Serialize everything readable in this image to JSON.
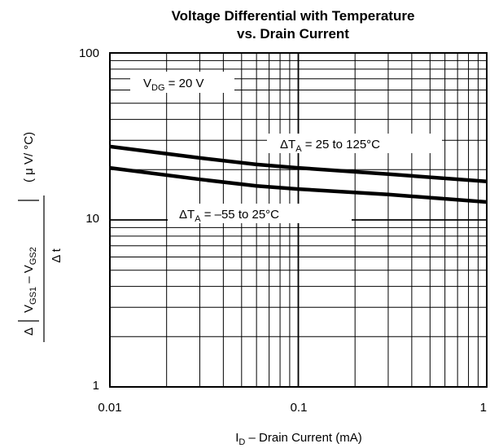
{
  "chart_data": {
    "type": "line",
    "title_line1": "Voltage Differential with Temperature",
    "title_line2": "vs. Drain Current",
    "x_scale": "log",
    "y_scale": "log",
    "xlim": [
      0.01,
      1
    ],
    "ylim": [
      1,
      100
    ],
    "grid": true,
    "x_ticks": [
      "0.01",
      "0.1",
      "1"
    ],
    "y_ticks": [
      "1",
      "10",
      "100"
    ],
    "xlabel": {
      "pre": "I",
      "sub": "D",
      "post": " – Drain Current (mA)"
    },
    "ylabel": {
      "delta": "Δ",
      "num_a": "V",
      "num_a_sub": "GS1",
      "minus": " – ",
      "num_b": "V",
      "num_b_sub": "GS2",
      "den": "Δ t",
      "unit": "( μ V/ °C)"
    },
    "annotation": {
      "pre": "V",
      "sub": "DG",
      "post": " = 20 V"
    },
    "series": [
      {
        "label_pre": "ΔT",
        "label_sub": "A",
        "label_post": " = 25 to 125°C",
        "x": [
          0.01,
          0.03,
          0.06,
          0.1,
          0.3,
          1
        ],
        "y": [
          27.5,
          23.5,
          21.5,
          20.5,
          18.8,
          17
        ]
      },
      {
        "label_pre": "ΔT",
        "label_sub": "A",
        "label_post": " = –55 to 25°C",
        "x": [
          0.01,
          0.03,
          0.06,
          0.1,
          0.3,
          1
        ],
        "y": [
          20.5,
          17.5,
          16,
          15.3,
          14.2,
          12.8
        ]
      }
    ],
    "colors": {
      "line": "#000000",
      "grid": "#000000",
      "background": "#ffffff"
    }
  }
}
